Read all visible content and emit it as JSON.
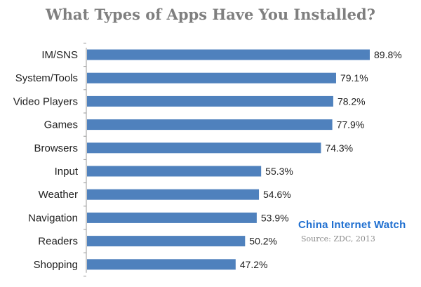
{
  "chart_data": {
    "type": "bar",
    "orientation": "horizontal",
    "title": "What Types of Apps Have You Installed?",
    "categories": [
      "IM/SNS",
      "System/Tools",
      "Video Players",
      "Games",
      "Browsers",
      "Input",
      "Weather",
      "Navigation",
      "Readers",
      "Shopping"
    ],
    "values": [
      89.8,
      79.1,
      78.2,
      77.9,
      74.3,
      55.3,
      54.6,
      53.9,
      50.2,
      47.2
    ],
    "value_labels": [
      "89.8%",
      "79.1%",
      "78.2%",
      "77.9%",
      "74.3%",
      "55.3%",
      "54.6%",
      "53.9%",
      "50.2%",
      "47.2%"
    ],
    "xlim": [
      0,
      89.8
    ],
    "grid": false,
    "legend": "none",
    "bar_color": "#4f81bd"
  },
  "watermark": {
    "brand": "China Internet Watch",
    "source": "Source: ZDC, 2013"
  }
}
